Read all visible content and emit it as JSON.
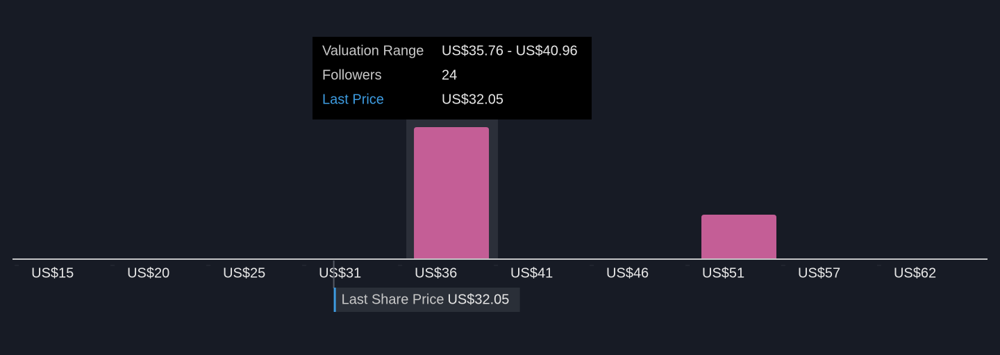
{
  "chart_data": {
    "type": "histogram",
    "bins": [
      14.96,
      20.16,
      25.36,
      30.56,
      35.76,
      40.96,
      46.16,
      51.36,
      56.56,
      61.76,
      66.96
    ],
    "values": [
      0,
      0,
      0,
      0,
      24,
      0,
      0,
      8,
      0,
      0
    ],
    "color": "#c45e96",
    "xlim": [
      14.39,
      67.3
    ],
    "xticks": [
      {
        "value": 14.96,
        "label": "US$15"
      },
      {
        "value": 20.16,
        "label": "US$20"
      },
      {
        "value": 25.36,
        "label": "US$25"
      },
      {
        "value": 30.56,
        "label": "US$31"
      },
      {
        "value": 35.76,
        "label": "US$36"
      },
      {
        "value": 40.96,
        "label": "US$41"
      },
      {
        "value": 46.16,
        "label": "US$46"
      },
      {
        "value": 51.36,
        "label": "US$51"
      },
      {
        "value": 56.56,
        "label": "US$57"
      },
      {
        "value": 61.76,
        "label": "US$62"
      }
    ],
    "tooltip": {
      "range_label": "Valuation Range",
      "range": "US$35.76 - US$40.96",
      "followers_label": "Followers",
      "price_label": "Last Price"
    },
    "last_price_label": "Last Share Price",
    "last_price": {
      "value": 32.05,
      "label": "US$32.05"
    }
  }
}
